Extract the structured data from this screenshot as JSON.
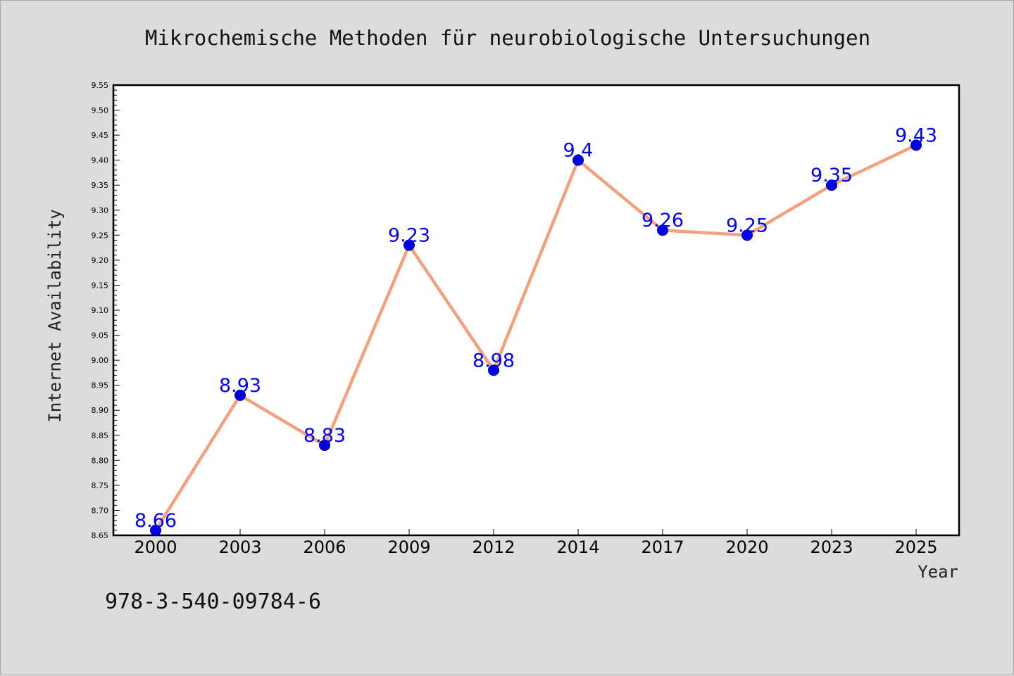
{
  "chart_data": {
    "type": "line",
    "title": "Mikrochemische Methoden für neurobiologische Untersuchungen",
    "xlabel": "Year",
    "ylabel": "Internet Availability",
    "categories": [
      "2000",
      "2003",
      "2006",
      "2009",
      "2012",
      "2014",
      "2017",
      "2020",
      "2023",
      "2025"
    ],
    "series": [
      {
        "values": [
          8.66,
          8.93,
          8.83,
          9.23,
          8.98,
          9.4,
          9.26,
          9.25,
          9.35,
          9.43
        ]
      }
    ],
    "data_labels": [
      "8.66",
      "8.93",
      "8.83",
      "9.23",
      "8.98",
      "9.4",
      "9.26",
      "9.25",
      "9.35",
      "9.43"
    ],
    "ylim": [
      8.65,
      9.55
    ],
    "yticks": [
      "8.65",
      "8.70",
      "8.75",
      "8.80",
      "8.85",
      "8.90",
      "8.95",
      "9.00",
      "9.05",
      "9.10",
      "9.15",
      "9.20",
      "9.25",
      "9.30",
      "9.35",
      "9.40",
      "9.45",
      "9.50",
      "9.55"
    ],
    "grid": false,
    "legend": "none",
    "colors": {
      "line": "#f4a07c",
      "marker": "#0000ee",
      "marker_edge": "#000080",
      "label": "#0000ff"
    }
  },
  "footer_text": "978-3-540-09784-6"
}
